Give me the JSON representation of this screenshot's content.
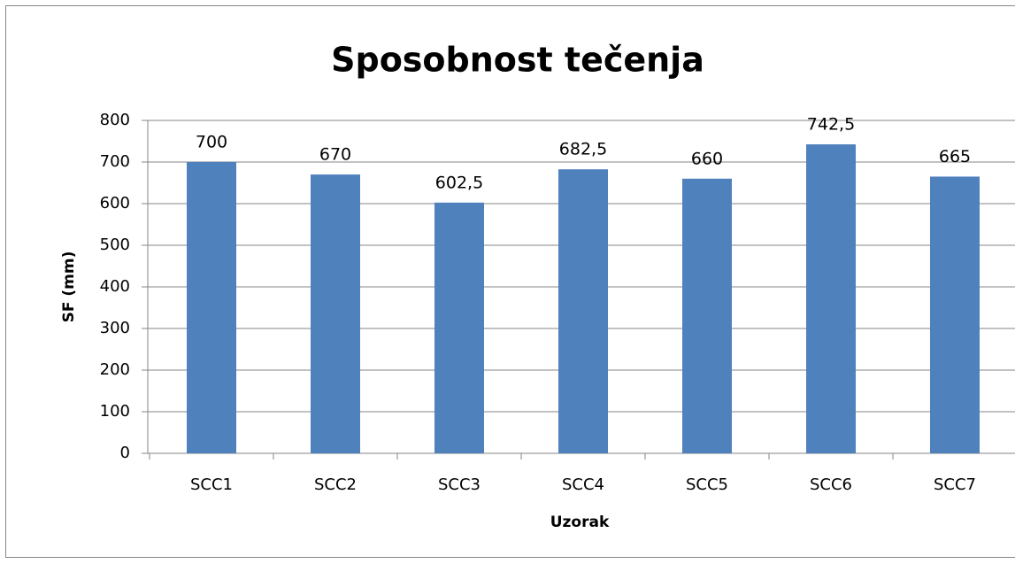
{
  "chart_data": {
    "type": "bar",
    "title": "Sposobnost tečenja",
    "x_label": "Uzorak",
    "y_label": "SF (mm)",
    "categories": [
      "SCC1",
      "SCC2",
      "SCC3",
      "SCC4",
      "SCC5",
      "SCC6",
      "SCC7"
    ],
    "values": [
      700,
      670,
      602.5,
      682.5,
      660,
      742.5,
      665
    ],
    "value_labels": [
      "700",
      "670",
      "602,5",
      "682,5",
      "660",
      "742,5",
      "665"
    ],
    "color": "#4f81bd",
    "ylim": [
      0,
      800
    ],
    "yticks": [
      0,
      100,
      200,
      300,
      400,
      500,
      600,
      700,
      800
    ],
    "grid": true
  }
}
